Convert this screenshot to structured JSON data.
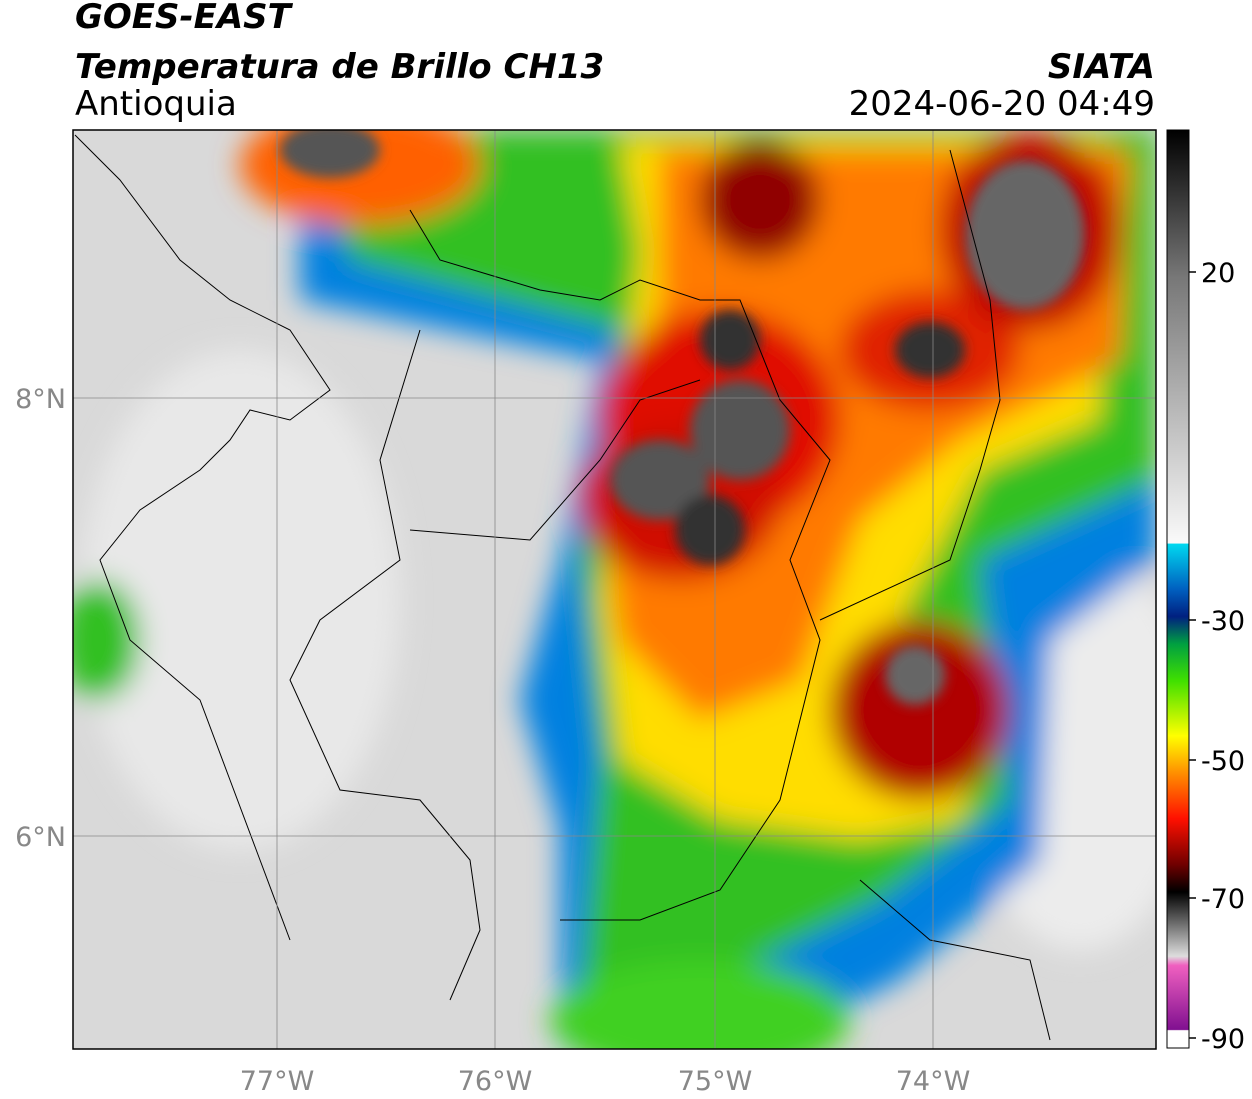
{
  "header": {
    "title": "GOES-EAST",
    "subtitle": "Temperatura de Brillo CH13",
    "region": "Antioquia",
    "source": "SIATA",
    "timestamp": "2024-06-20 04:49"
  },
  "map": {
    "lat_labels": [
      "8°N",
      "6°N"
    ],
    "lon_labels": [
      "77°W",
      "76°W",
      "75°W",
      "74°W"
    ]
  },
  "colorbar": {
    "ticks": [
      "20",
      "-30",
      "-50",
      "-70",
      "-90"
    ]
  }
}
